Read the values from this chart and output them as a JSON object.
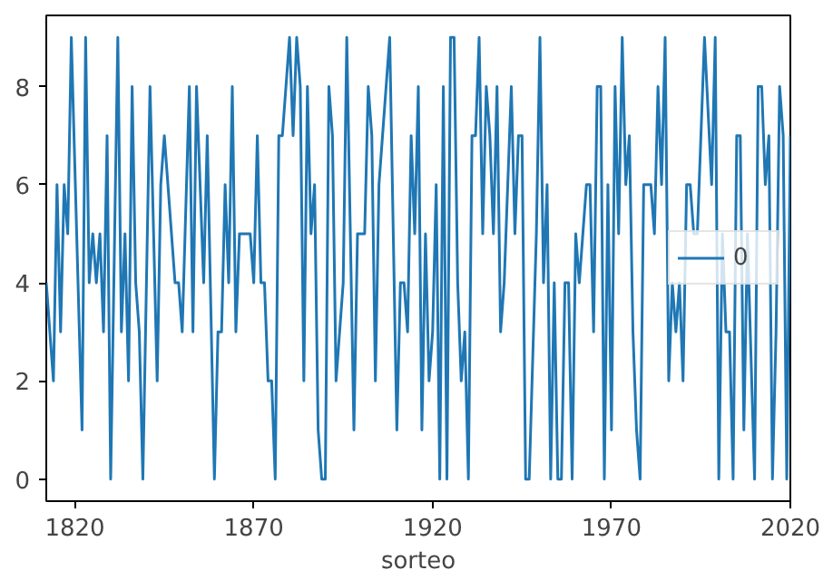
{
  "chart_data": {
    "type": "line",
    "xlabel": "sorteo",
    "xlim": [
      1812,
      2020
    ],
    "xticks": [
      1820,
      1870,
      1920,
      1970,
      2020
    ],
    "ylim": [
      -0.45,
      9.45
    ],
    "yticks": [
      0,
      2,
      4,
      6,
      8
    ],
    "grid": false,
    "legend": "right",
    "marker": "none",
    "line_style": "solid",
    "series": [
      {
        "name": "0",
        "color": "#1f77b4",
        "x": [
          1812,
          1814,
          1815,
          1816,
          1817,
          1818,
          1819,
          1822,
          1823,
          1824,
          1825,
          1826,
          1827,
          1828,
          1829,
          1830,
          1832,
          1833,
          1834,
          1835,
          1836,
          1837,
          1838,
          1839,
          1841,
          1843,
          1844,
          1845,
          1848,
          1849,
          1850,
          1852,
          1853,
          1854,
          1856,
          1857,
          1859,
          1860,
          1861,
          1862,
          1863,
          1864,
          1865,
          1866,
          1869,
          1870,
          1871,
          1872,
          1873,
          1874,
          1875,
          1876,
          1877,
          1878,
          1880,
          1881,
          1882,
          1883,
          1884,
          1885,
          1886,
          1887,
          1888,
          1889,
          1890,
          1891,
          1892,
          1893,
          1895,
          1896,
          1898,
          1899,
          1901,
          1902,
          1903,
          1904,
          1905,
          1906,
          1908,
          1910,
          1911,
          1912,
          1913,
          1914,
          1915,
          1916,
          1917,
          1918,
          1919,
          1920,
          1921,
          1922,
          1923,
          1924,
          1925,
          1926,
          1927,
          1928,
          1929,
          1930,
          1931,
          1932,
          1933,
          1934,
          1935,
          1936,
          1937,
          1938,
          1939,
          1940,
          1942,
          1943,
          1944,
          1945,
          1946,
          1947,
          1949,
          1950,
          1951,
          1952,
          1953,
          1954,
          1955,
          1956,
          1957,
          1958,
          1959,
          1960,
          1961,
          1962,
          1963,
          1964,
          1965,
          1966,
          1967,
          1968,
          1969,
          1970,
          1971,
          1972,
          1973,
          1974,
          1975,
          1976,
          1977,
          1978,
          1979,
          1981,
          1982,
          1983,
          1984,
          1985,
          1986,
          1987,
          1988,
          1989,
          1990,
          1991,
          1992,
          1993,
          1994,
          1996,
          1998,
          1999,
          2000,
          2001,
          2002,
          2003,
          2004,
          2005,
          2006,
          2007,
          2008,
          2010,
          2011,
          2012,
          2013,
          2014,
          2015,
          2016,
          2017,
          2018,
          2019,
          2020
        ],
        "values": [
          4,
          2,
          6,
          3,
          6,
          5,
          9,
          1,
          9,
          4,
          5,
          4,
          5,
          3,
          7,
          0,
          9,
          3,
          5,
          2,
          8,
          4,
          3,
          0,
          8,
          2,
          6,
          7,
          4,
          4,
          3,
          8,
          3,
          8,
          4,
          7,
          0,
          3,
          3,
          6,
          4,
          8,
          3,
          5,
          5,
          4,
          7,
          4,
          4,
          2,
          2,
          0,
          7,
          7,
          9,
          7,
          9,
          8,
          2,
          8,
          5,
          6,
          1,
          0,
          0,
          8,
          7,
          2,
          4,
          9,
          1,
          5,
          5,
          8,
          7,
          2,
          6,
          7,
          9,
          1,
          4,
          4,
          3,
          7,
          5,
          8,
          1,
          5,
          2,
          3,
          6,
          0,
          8,
          0,
          9,
          9,
          4,
          2,
          3,
          0,
          7,
          7,
          9,
          5,
          8,
          7,
          5,
          8,
          3,
          4,
          8,
          5,
          7,
          7,
          0,
          0,
          5,
          9,
          4,
          6,
          0,
          4,
          0,
          0,
          4,
          4,
          0,
          5,
          4,
          5,
          6,
          6,
          3,
          8,
          8,
          0,
          6,
          1,
          8,
          5,
          9,
          6,
          7,
          3,
          1,
          0,
          6,
          6,
          5,
          8,
          6,
          9,
          2,
          4,
          3,
          4,
          2,
          6,
          6,
          5,
          5,
          9,
          6,
          9,
          0,
          5,
          3,
          3,
          0,
          7,
          7,
          1,
          5,
          0,
          8,
          8,
          6,
          7,
          0,
          3,
          8,
          7,
          0,
          7
        ]
      }
    ]
  }
}
